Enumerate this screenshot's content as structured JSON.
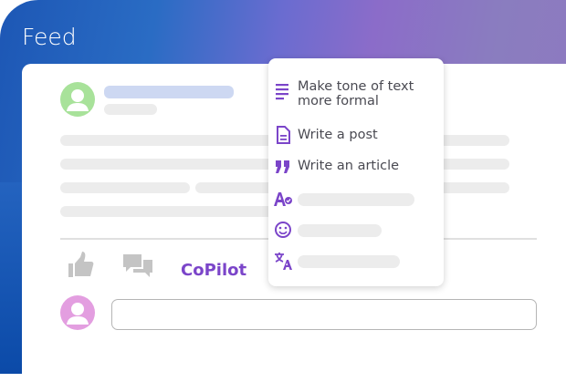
{
  "header": {
    "title": "Feed"
  },
  "post": {
    "actions": {
      "copilot_label": "CoPilot"
    }
  },
  "copilot_menu": {
    "items": [
      {
        "label": "Make tone of text more formal",
        "icon": "lines-icon"
      },
      {
        "label": "Write a post",
        "icon": "document-icon"
      },
      {
        "label": "Write an article",
        "icon": "quote-icon"
      },
      {
        "label": "",
        "icon": "spellcheck-icon"
      },
      {
        "label": "",
        "icon": "smiley-icon"
      },
      {
        "label": "",
        "icon": "translate-icon"
      }
    ]
  },
  "colors": {
    "accent": "#7b45c9",
    "author_avatar": "#a8e29a",
    "user_avatar": "#e39ee0",
    "name_placeholder": "#cdd8f2"
  }
}
